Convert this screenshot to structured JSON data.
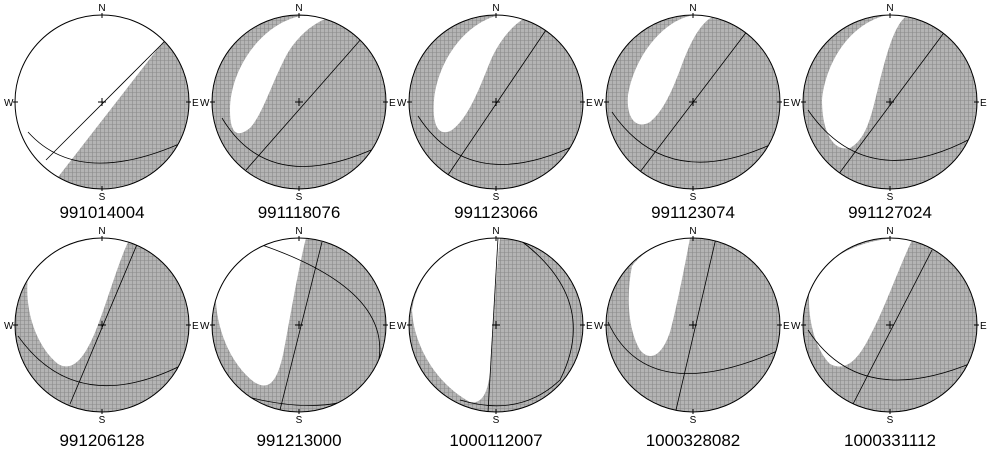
{
  "compass": {
    "north": "N",
    "east": "E",
    "south": "S",
    "west": "W"
  },
  "colors": {
    "compression": "#a9a9a9",
    "dilatation": "#ffffff",
    "outline": "#000000"
  },
  "mechanisms": [
    {
      "id": "991014004"
    },
    {
      "id": "991118076"
    },
    {
      "id": "991123066"
    },
    {
      "id": "991123074"
    },
    {
      "id": "991127024"
    },
    {
      "id": "991206128"
    },
    {
      "id": "991213000"
    },
    {
      "id": "1000112007"
    },
    {
      "id": "1000328082"
    },
    {
      "id": "1000331112"
    }
  ]
}
